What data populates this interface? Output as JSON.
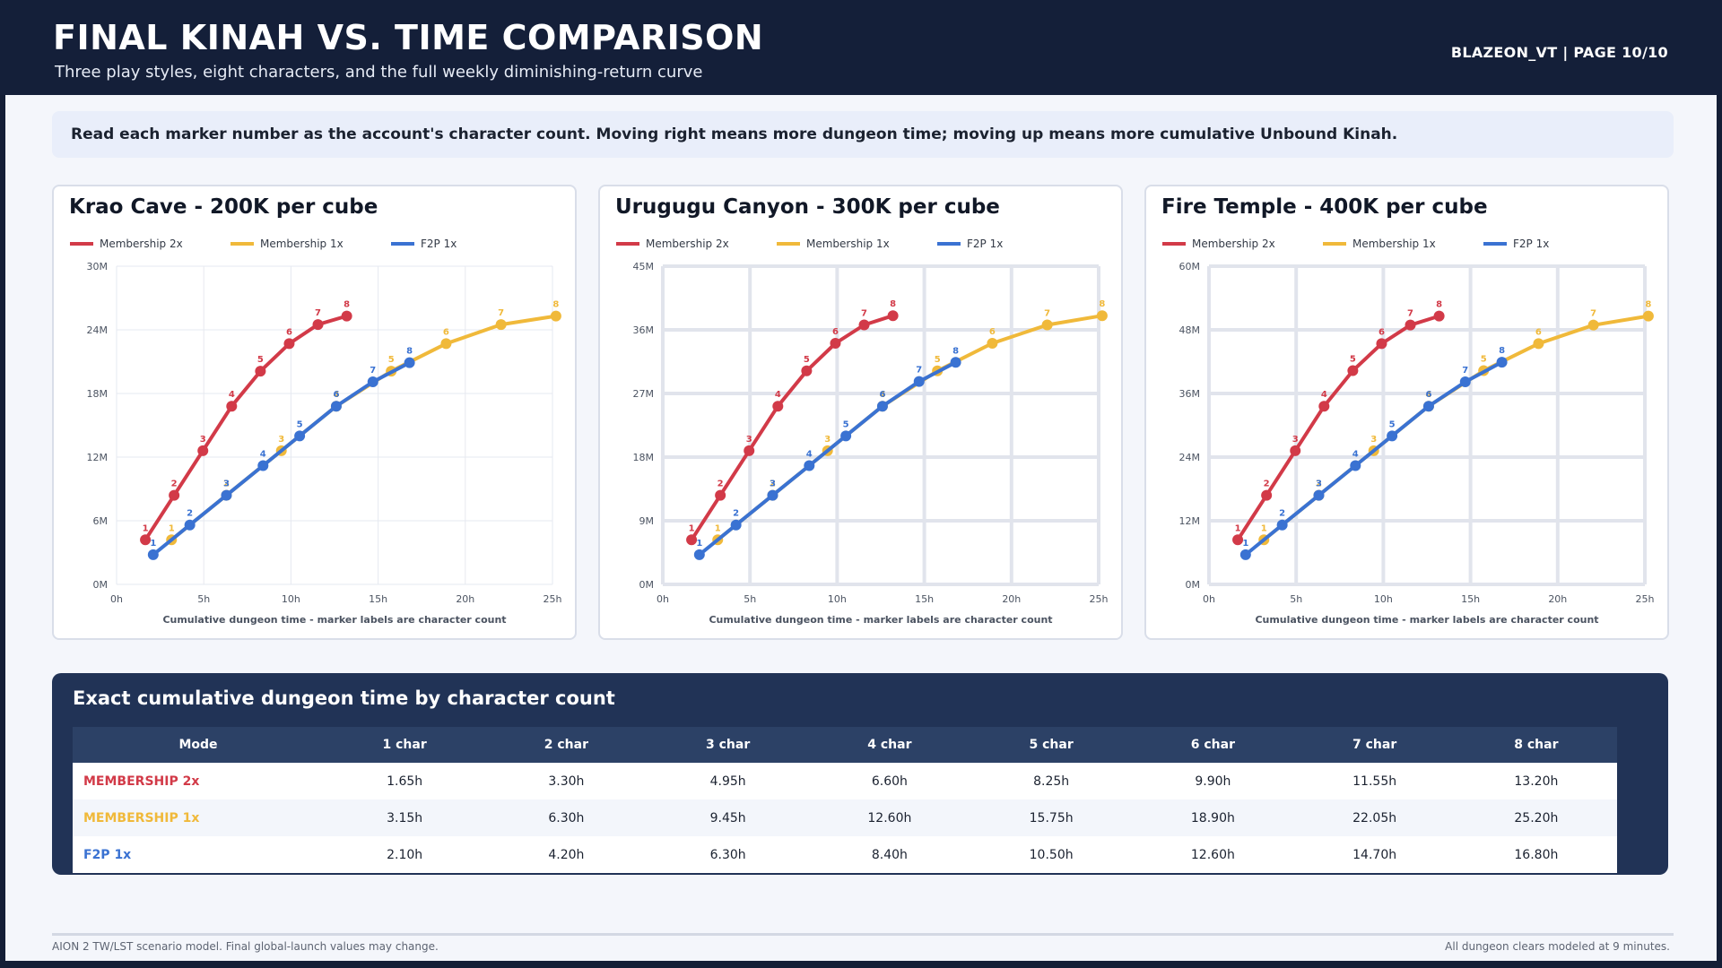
{
  "header": {
    "title": "FINAL KINAH VS. TIME COMPARISON",
    "subtitle": "Three play styles, eight characters, and the full weekly diminishing-return curve",
    "author_page": "BLAZEON_VT  |  PAGE 10/10"
  },
  "callout": "Read each marker number as the account's character count. Moving right means more dungeon time; moving up means more cumulative Unbound Kinah.",
  "colors": {
    "membership_2x": "#d23a48",
    "membership_1x": "#f0b93a",
    "f2p_1x": "#3a72d2"
  },
  "chart_data": [
    {
      "type": "line",
      "title": "Krao Cave - 200K per cube",
      "xlabel": "Cumulative dungeon time - marker labels are character count",
      "ylabel": "",
      "xlim": [
        0,
        25
      ],
      "ylim": [
        0,
        30
      ],
      "x_ticks": [
        "0h",
        "5h",
        "10h",
        "15h",
        "20h",
        "25h"
      ],
      "y_ticks": [
        "0M",
        "6M",
        "12M",
        "18M",
        "24M",
        "30M"
      ],
      "legend": "top-left",
      "grid": true,
      "series": [
        {
          "name": "Membership 2x",
          "color_key": "membership_2x",
          "x": [
            1.65,
            3.3,
            4.95,
            6.6,
            8.25,
            9.9,
            11.55,
            13.2
          ],
          "y": [
            4.2,
            8.4,
            12.6,
            16.8,
            20.1,
            22.7,
            24.5,
            25.3
          ],
          "labels": [
            "1",
            "2",
            "3",
            "4",
            "5",
            "6",
            "7",
            "8"
          ]
        },
        {
          "name": "Membership 1x",
          "color_key": "membership_1x",
          "x": [
            3.15,
            6.3,
            9.45,
            12.6,
            15.75,
            18.9,
            22.05,
            25.2
          ],
          "y": [
            4.2,
            8.4,
            12.6,
            16.8,
            20.1,
            22.7,
            24.5,
            25.3
          ],
          "labels": [
            "1",
            "2",
            "3",
            "4",
            "5",
            "6",
            "7",
            "8"
          ]
        },
        {
          "name": "F2P 1x",
          "color_key": "f2p_1x",
          "x": [
            2.1,
            4.2,
            6.3,
            8.4,
            10.5,
            12.6,
            14.7,
            16.8
          ],
          "y": [
            2.8,
            5.6,
            8.4,
            11.2,
            14.0,
            16.8,
            19.1,
            20.9
          ],
          "labels": [
            "1",
            "2",
            "3",
            "4",
            "5",
            "6",
            "7",
            "8"
          ]
        }
      ]
    },
    {
      "type": "line",
      "title": "Urugugu Canyon - 300K per cube",
      "xlabel": "Cumulative dungeon time - marker labels are character count",
      "ylabel": "",
      "xlim": [
        0,
        25
      ],
      "ylim": [
        0,
        45
      ],
      "x_ticks": [
        "0h",
        "5h",
        "10h",
        "15h",
        "20h",
        "25h"
      ],
      "y_ticks": [
        "0M",
        "9M",
        "18M",
        "27M",
        "36M",
        "45M"
      ],
      "legend": "top-left",
      "grid": true,
      "series": [
        {
          "name": "Membership 2x",
          "color_key": "membership_2x",
          "x": [
            1.65,
            3.3,
            4.95,
            6.6,
            8.25,
            9.9,
            11.55,
            13.2
          ],
          "y": [
            6.3,
            12.6,
            18.9,
            25.2,
            30.2,
            34.1,
            36.7,
            38.0
          ],
          "labels": [
            "1",
            "2",
            "3",
            "4",
            "5",
            "6",
            "7",
            "8"
          ]
        },
        {
          "name": "Membership 1x",
          "color_key": "membership_1x",
          "x": [
            3.15,
            6.3,
            9.45,
            12.6,
            15.75,
            18.9,
            22.05,
            25.2
          ],
          "y": [
            6.3,
            12.6,
            18.9,
            25.2,
            30.2,
            34.1,
            36.7,
            38.0
          ],
          "labels": [
            "1",
            "2",
            "3",
            "4",
            "5",
            "6",
            "7",
            "8"
          ]
        },
        {
          "name": "F2P 1x",
          "color_key": "f2p_1x",
          "x": [
            2.1,
            4.2,
            6.3,
            8.4,
            10.5,
            12.6,
            14.7,
            16.8
          ],
          "y": [
            4.2,
            8.4,
            12.6,
            16.8,
            21.0,
            25.2,
            28.7,
            31.4
          ],
          "labels": [
            "1",
            "2",
            "3",
            "4",
            "5",
            "6",
            "7",
            "8"
          ]
        }
      ]
    },
    {
      "type": "line",
      "title": "Fire Temple - 400K per cube",
      "xlabel": "Cumulative dungeon time - marker labels are character count",
      "ylabel": "",
      "xlim": [
        0,
        25
      ],
      "ylim": [
        0,
        60
      ],
      "x_ticks": [
        "0h",
        "5h",
        "10h",
        "15h",
        "20h",
        "25h"
      ],
      "y_ticks": [
        "0M",
        "12M",
        "24M",
        "36M",
        "48M",
        "60M"
      ],
      "legend": "top-left",
      "grid": true,
      "series": [
        {
          "name": "Membership 2x",
          "color_key": "membership_2x",
          "x": [
            1.65,
            3.3,
            4.95,
            6.6,
            8.25,
            9.9,
            11.55,
            13.2
          ],
          "y": [
            8.4,
            16.8,
            25.2,
            33.6,
            40.3,
            45.4,
            48.9,
            50.6
          ],
          "labels": [
            "1",
            "2",
            "3",
            "4",
            "5",
            "6",
            "7",
            "8"
          ]
        },
        {
          "name": "Membership 1x",
          "color_key": "membership_1x",
          "x": [
            3.15,
            6.3,
            9.45,
            12.6,
            15.75,
            18.9,
            22.05,
            25.2
          ],
          "y": [
            8.4,
            16.8,
            25.2,
            33.6,
            40.3,
            45.4,
            48.9,
            50.6
          ],
          "labels": [
            "1",
            "2",
            "3",
            "4",
            "5",
            "6",
            "7",
            "8"
          ]
        },
        {
          "name": "F2P 1x",
          "color_key": "f2p_1x",
          "x": [
            2.1,
            4.2,
            6.3,
            8.4,
            10.5,
            12.6,
            14.7,
            16.8
          ],
          "y": [
            5.6,
            11.2,
            16.8,
            22.4,
            28.0,
            33.6,
            38.2,
            41.9
          ],
          "labels": [
            "1",
            "2",
            "3",
            "4",
            "5",
            "6",
            "7",
            "8"
          ]
        }
      ]
    }
  ],
  "table": {
    "title": "Exact cumulative dungeon time by character count",
    "headers": [
      "Mode",
      "1 char",
      "2 char",
      "3 char",
      "4 char",
      "5 char",
      "6 char",
      "7 char",
      "8 char"
    ],
    "rows": [
      {
        "mode": "MEMBERSHIP 2x",
        "color_key": "membership_2x",
        "values": [
          "1.65h",
          "3.30h",
          "4.95h",
          "6.60h",
          "8.25h",
          "9.90h",
          "11.55h",
          "13.20h"
        ]
      },
      {
        "mode": "MEMBERSHIP 1x",
        "color_key": "membership_1x",
        "values": [
          "3.15h",
          "6.30h",
          "9.45h",
          "12.60h",
          "15.75h",
          "18.90h",
          "22.05h",
          "25.20h"
        ]
      },
      {
        "mode": "F2P 1x",
        "color_key": "f2p_1x",
        "values": [
          "2.10h",
          "4.20h",
          "6.30h",
          "8.40h",
          "10.50h",
          "12.60h",
          "14.70h",
          "16.80h"
        ]
      }
    ]
  },
  "footer": {
    "left": "AION 2 TW/LST scenario model. Final global-launch values may change.",
    "right": "All dungeon clears modeled at 9 minutes."
  }
}
